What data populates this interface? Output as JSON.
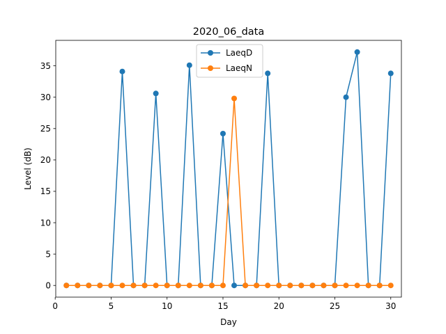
{
  "chart_data": {
    "type": "line",
    "title": "2020_06_data",
    "xlabel": "Day",
    "ylabel": "Level (dB)",
    "xlim": [
      0.05,
      30.95
    ],
    "ylim": [
      -1.86,
      39.06
    ],
    "xticks": [
      0,
      5,
      10,
      15,
      20,
      25,
      30
    ],
    "yticks": [
      0,
      5,
      10,
      15,
      20,
      25,
      30,
      35
    ],
    "grid": false,
    "legend_position": "top-center",
    "x": [
      1,
      2,
      3,
      4,
      5,
      6,
      7,
      8,
      9,
      10,
      11,
      12,
      13,
      14,
      15,
      16,
      17,
      18,
      19,
      20,
      21,
      22,
      23,
      24,
      25,
      26,
      27,
      28,
      29,
      30
    ],
    "series": [
      {
        "name": "LaeqD",
        "color": "#1f77b4",
        "values": [
          0,
          0,
          0,
          0,
          0,
          34.1,
          0,
          0,
          30.6,
          0,
          0,
          35.1,
          0,
          0,
          24.2,
          0,
          0,
          0,
          33.8,
          0,
          0,
          0,
          0,
          0,
          0,
          30.0,
          37.2,
          0,
          0,
          33.8
        ]
      },
      {
        "name": "LaeqN",
        "color": "#ff7f0e",
        "values": [
          0,
          0,
          0,
          0,
          0,
          0,
          0,
          0,
          0,
          0,
          0,
          0,
          0,
          0,
          0,
          29.8,
          0,
          0,
          0,
          0,
          0,
          0,
          0,
          0,
          0,
          0,
          0,
          0,
          0,
          0
        ]
      }
    ]
  }
}
